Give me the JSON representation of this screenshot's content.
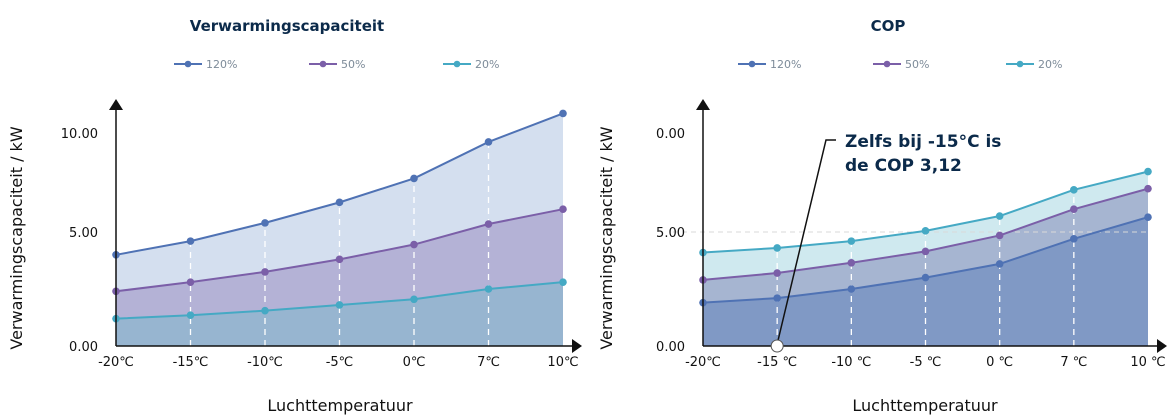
{
  "colors": {
    "s120": "#4f72b4",
    "s50": "#7b5fa8",
    "s20": "#45a9c4",
    "title": "#0b2a4a"
  },
  "chart_data": [
    {
      "type": "area",
      "title": "Verwarmingscapaciteit",
      "xlabel": "Luchttemperatuur",
      "ylabel": "Verwarmingscapaciteit / kW",
      "categories": [
        "-20℃",
        "-15℃",
        "-10℃",
        "-5℃",
        "0℃",
        "7℃",
        "10℃"
      ],
      "y_ticks": [
        "0.00",
        "5.00",
        "10.00"
      ],
      "ylim": [
        0,
        10
      ],
      "series": [
        {
          "name": "120%",
          "values": [
            4.0,
            4.6,
            5.4,
            6.3,
            7.35,
            8.95,
            10.2
          ]
        },
        {
          "name": "50%",
          "values": [
            2.4,
            2.8,
            3.25,
            3.8,
            4.45,
            5.35,
            6.0
          ]
        },
        {
          "name": "20%",
          "values": [
            1.2,
            1.35,
            1.55,
            1.8,
            2.05,
            2.5,
            2.8
          ]
        }
      ],
      "legend": "top-center",
      "grid": "vertical-dashed"
    },
    {
      "type": "area",
      "title": "COP",
      "xlabel": "Luchttemperatuur",
      "ylabel": "Verwarmingscapaciteit / kW",
      "categories": [
        "-20℃",
        "-15 ℃",
        "-10 ℃",
        "-5 ℃",
        "0 ℃",
        "7 ℃",
        "10 ℃"
      ],
      "y_ticks": [
        "0.00",
        "5.00",
        "0.00"
      ],
      "ylim": [
        0,
        10
      ],
      "series": [
        {
          "name": "120%",
          "values": [
            1.9,
            2.1,
            2.5,
            3.0,
            3.6,
            4.7,
            5.65
          ]
        },
        {
          "name": "50%",
          "values": [
            2.9,
            3.2,
            3.65,
            4.15,
            4.85,
            6.0,
            6.9
          ]
        },
        {
          "name": "20%",
          "values": [
            4.1,
            4.3,
            4.6,
            5.05,
            5.7,
            6.85,
            7.65
          ]
        }
      ],
      "annotation": {
        "lines": [
          "Zelfs bij -15°C is",
          "de COP 3,12"
        ]
      },
      "legend": "top-center",
      "grid": "vertical-dashed"
    }
  ]
}
